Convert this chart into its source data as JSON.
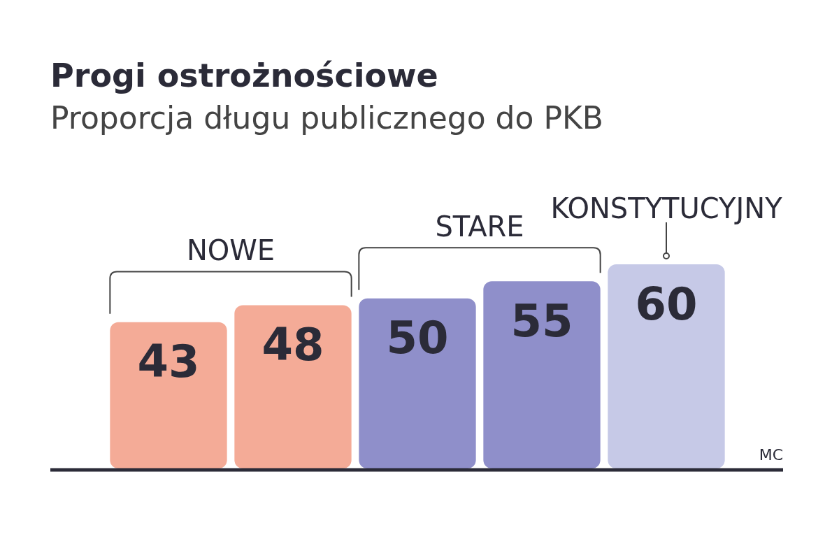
{
  "chart_data": {
    "type": "bar",
    "title": "Progi ostrożnościowe",
    "subtitle": "Proporcja długu publicznego do PKB",
    "categories": [
      null,
      null,
      null,
      null,
      null
    ],
    "data_labels": true,
    "values": [
      43,
      48,
      50,
      55,
      60
    ],
    "colors": [
      "#f4ab97",
      "#f4ab97",
      "#8f8fca",
      "#8f8fca",
      "#c6c9e7"
    ],
    "annotations": [
      "NOWE",
      "STARE",
      "KONSTYTUCYJNY",
      "MC"
    ]
  }
}
